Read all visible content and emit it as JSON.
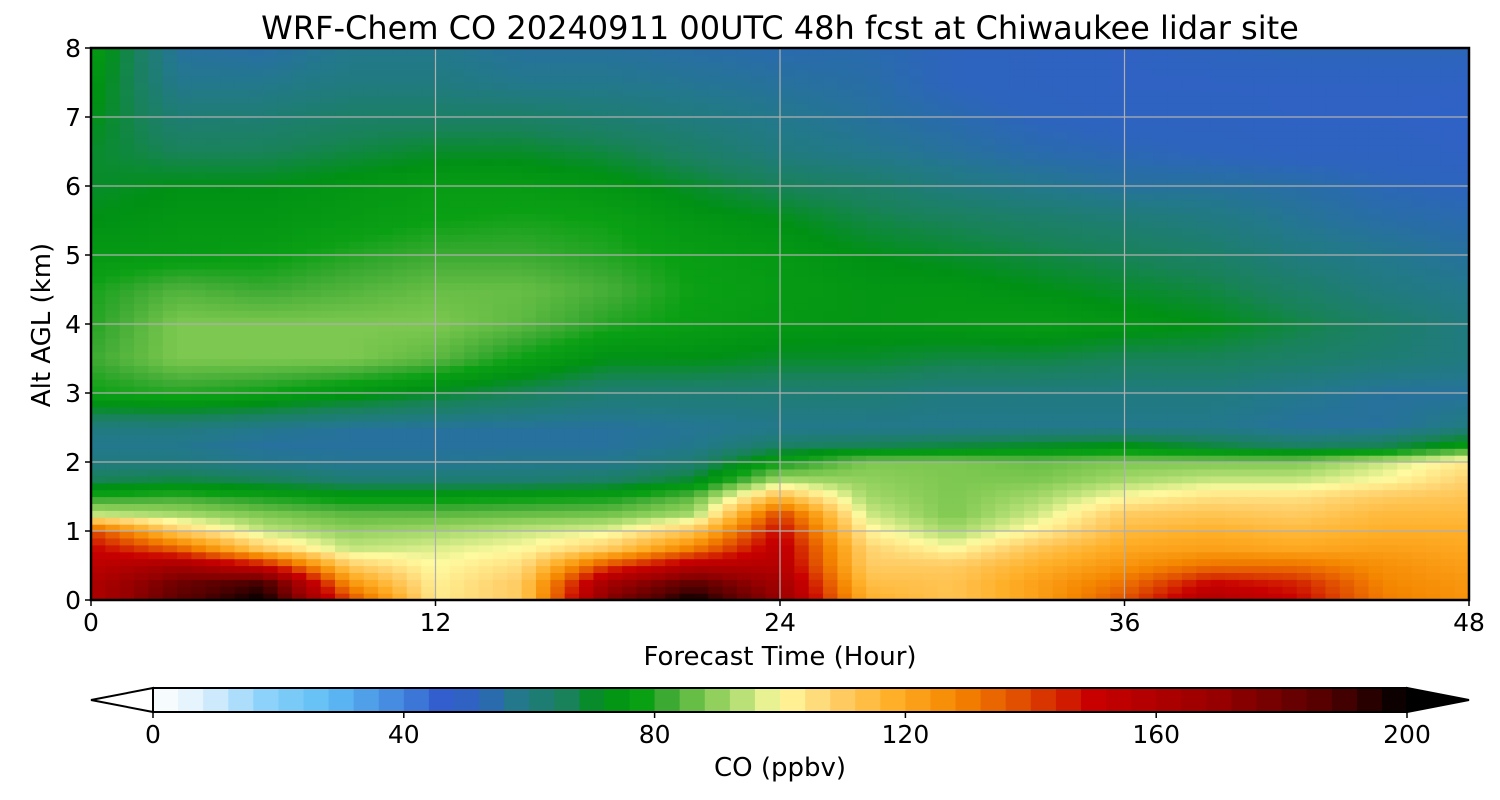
{
  "chart_data": {
    "type": "heatmap",
    "title": "WRF-Chem CO  20240911 00UTC 48h fcst at Chiwaukee lidar site",
    "xlabel": "Forecast Time (Hour)",
    "ylabel": "Alt AGL (km)",
    "xlim": [
      0,
      48
    ],
    "ylim": [
      0,
      8
    ],
    "x_ticks": [
      "0",
      "12",
      "24",
      "36",
      "48"
    ],
    "y_ticks": [
      "0",
      "1",
      "2",
      "3",
      "4",
      "5",
      "6",
      "7",
      "8"
    ],
    "grid": true,
    "colorbar": {
      "label": "CO  (ppbv)",
      "range": [
        0,
        200
      ],
      "ticks": [
        "0",
        "40",
        "80",
        "120",
        "160",
        "200"
      ],
      "extend": "both"
    },
    "x": [
      0,
      3,
      6,
      9,
      12,
      15,
      18,
      21,
      24,
      27,
      30,
      33,
      36,
      39,
      42,
      45,
      48
    ],
    "y": [
      0,
      0.25,
      0.5,
      0.75,
      1,
      1.25,
      1.5,
      1.75,
      2,
      2.25,
      2.5,
      3,
      3.5,
      4,
      4.5,
      5,
      5.5,
      6,
      6.5,
      7,
      7.5,
      8
    ],
    "z": [
      [
        160,
        185,
        200,
        140,
        103,
        110,
        175,
        200,
        170,
        118,
        112,
        122,
        138,
        160,
        150,
        130,
        125
      ],
      [
        160,
        180,
        190,
        125,
        102,
        110,
        165,
        185,
        165,
        114,
        112,
        122,
        132,
        150,
        145,
        128,
        124
      ],
      [
        155,
        165,
        150,
        110,
        100,
        106,
        140,
        158,
        158,
        110,
        110,
        118,
        125,
        132,
        132,
        126,
        122
      ],
      [
        150,
        135,
        110,
        95,
        97,
        100,
        110,
        130,
        155,
        108,
        100,
        112,
        120,
        122,
        120,
        122,
        120
      ],
      [
        140,
        110,
        95,
        90,
        92,
        95,
        98,
        112,
        150,
        102,
        92,
        102,
        115,
        118,
        115,
        118,
        118
      ],
      [
        95,
        92,
        88,
        85,
        85,
        86,
        87,
        92,
        140,
        96,
        88,
        96,
        110,
        112,
        110,
        115,
        115
      ],
      [
        80,
        82,
        79,
        76,
        76,
        77,
        78,
        85,
        115,
        92,
        88,
        92,
        100,
        105,
        105,
        110,
        112
      ],
      [
        66,
        68,
        66,
        62,
        62,
        62,
        64,
        70,
        92,
        90,
        88,
        88,
        92,
        95,
        95,
        100,
        108
      ],
      [
        60,
        60,
        58,
        57,
        57,
        58,
        58,
        62,
        78,
        88,
        88,
        86,
        88,
        88,
        88,
        95,
        104
      ],
      [
        58,
        58,
        56,
        56,
        56,
        56,
        56,
        58,
        64,
        66,
        68,
        70,
        72,
        68,
        64,
        66,
        75
      ],
      [
        60,
        60,
        58,
        56,
        56,
        56,
        56,
        57,
        58,
        58,
        58,
        58,
        58,
        58,
        56,
        56,
        60
      ],
      [
        78,
        80,
        78,
        74,
        70,
        66,
        62,
        62,
        62,
        62,
        60,
        60,
        60,
        60,
        58,
        56,
        56
      ],
      [
        82,
        88,
        88,
        88,
        85,
        78,
        72,
        72,
        70,
        70,
        68,
        68,
        66,
        66,
        64,
        62,
        60
      ],
      [
        80,
        88,
        88,
        88,
        88,
        85,
        80,
        77,
        75,
        74,
        75,
        76,
        74,
        72,
        68,
        64,
        60
      ],
      [
        79,
        84,
        82,
        84,
        86,
        86,
        83,
        78,
        76,
        74,
        74,
        72,
        70,
        68,
        64,
        60,
        58
      ],
      [
        75,
        76,
        77,
        80,
        82,
        82,
        80,
        77,
        75,
        72,
        70,
        68,
        66,
        64,
        60,
        58,
        56
      ],
      [
        72,
        74,
        74,
        76,
        78,
        79,
        78,
        74,
        72,
        68,
        66,
        64,
        62,
        60,
        57,
        55,
        54
      ],
      [
        70,
        72,
        72,
        74,
        76,
        76,
        74,
        70,
        66,
        64,
        60,
        58,
        56,
        56,
        55,
        53,
        52
      ],
      [
        70,
        66,
        66,
        68,
        70,
        70,
        68,
        64,
        60,
        58,
        56,
        54,
        53,
        52,
        51,
        51,
        50
      ],
      [
        72,
        62,
        62,
        64,
        64,
        64,
        62,
        60,
        58,
        56,
        54,
        52,
        51,
        51,
        50,
        50,
        49
      ],
      [
        74,
        58,
        58,
        60,
        60,
        58,
        58,
        57,
        56,
        55,
        52,
        51,
        50,
        50,
        50,
        50,
        50
      ],
      [
        76,
        56,
        55,
        58,
        58,
        56,
        56,
        55,
        54,
        54,
        52,
        51,
        50,
        52,
        53,
        53,
        53
      ]
    ]
  }
}
